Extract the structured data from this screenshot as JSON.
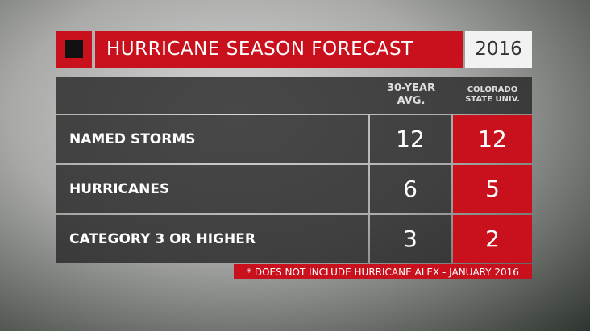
{
  "header": {
    "title": "HURRICANE SEASON FORECAST",
    "year": "2016"
  },
  "table": {
    "columns": [
      "30-YEAR AVG.",
      "COLORADO STATE UNIV."
    ],
    "rows": [
      [
        "NAMED STORMS",
        12,
        12
      ],
      [
        "HURRICANES",
        6,
        5
      ],
      [
        "CATEGORY 3 OR HIGHER",
        3,
        2
      ]
    ]
  },
  "footnote": "* DOES NOT INCLUDE HURRICANE ALEX - JANUARY 2016"
}
